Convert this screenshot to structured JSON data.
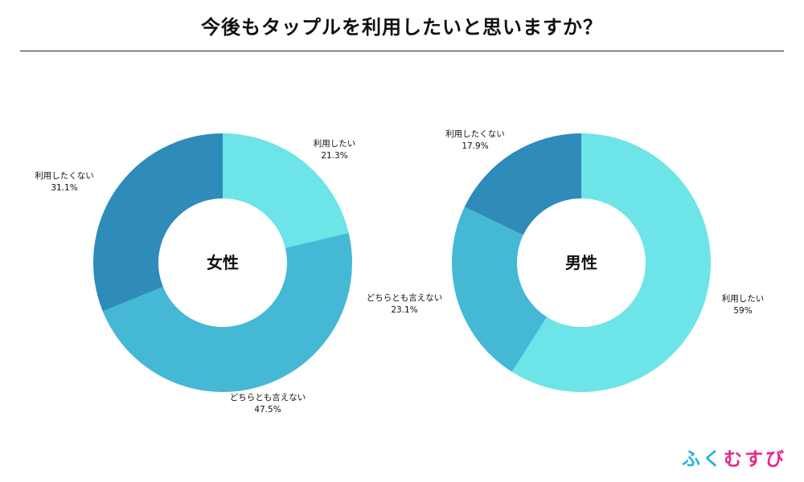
{
  "title": "今後もタップルを利用したいと思いますか？",
  "colors": {
    "want": "#6ce4e8",
    "neutral": "#45b8d6",
    "not_want": "#2e8bba",
    "title_rule": "#222222",
    "logo": [
      "#1fb3e0",
      "#1fb3e0",
      "#e6268a",
      "#e6268a",
      "#e6268a"
    ]
  },
  "logo": {
    "chars": [
      "ふ",
      "く",
      "む",
      "す",
      "び"
    ]
  },
  "chart_data": [
    {
      "type": "pie",
      "center_label": "女性",
      "slices": [
        {
          "label": "利用したい",
          "value": 21.3,
          "value_text": "21.3%",
          "color": "#6ce4e8"
        },
        {
          "label": "どちらとも言えない",
          "value": 47.5,
          "value_text": "47.5%",
          "color": "#45b8d6"
        },
        {
          "label": "利用したくない",
          "value": 31.1,
          "value_text": "31.1%",
          "color": "#2e8bba"
        }
      ]
    },
    {
      "type": "pie",
      "center_label": "男性",
      "slices": [
        {
          "label": "利用したい",
          "value": 59,
          "value_text": "59%",
          "color": "#6ce4e8"
        },
        {
          "label": "どちらとも言えない",
          "value": 23.1,
          "value_text": "23.1%",
          "color": "#45b8d6"
        },
        {
          "label": "利用したくない",
          "value": 17.9,
          "value_text": "17.9%",
          "color": "#2e8bba"
        }
      ]
    }
  ]
}
